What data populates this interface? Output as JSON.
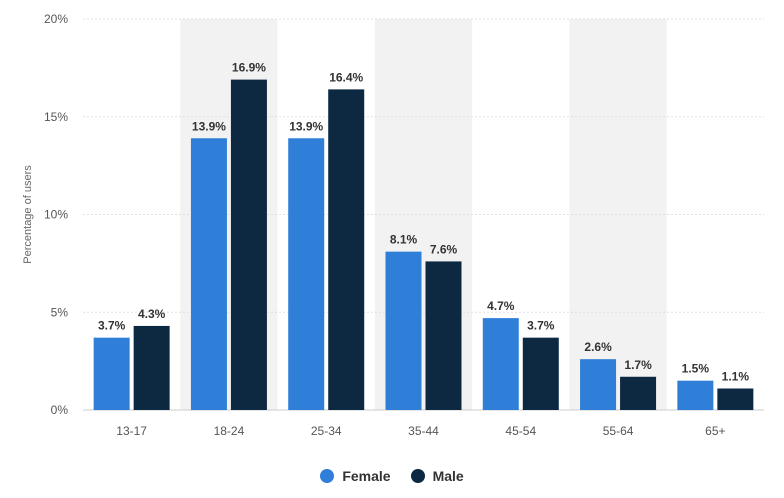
{
  "chart_data": {
    "type": "bar",
    "categories": [
      "13-17",
      "18-24",
      "25-34",
      "35-44",
      "45-54",
      "55-64",
      "65+"
    ],
    "series": [
      {
        "name": "Female",
        "color": "#2f7ed8",
        "values": [
          3.7,
          13.9,
          13.9,
          8.1,
          4.7,
          2.6,
          1.5
        ],
        "labels": [
          "3.7%",
          "13.9%",
          "13.9%",
          "8.1%",
          "4.7%",
          "2.6%",
          "1.5%"
        ]
      },
      {
        "name": "Male",
        "color": "#0d2841",
        "values": [
          4.3,
          16.9,
          16.4,
          7.6,
          3.7,
          1.7,
          1.1
        ],
        "labels": [
          "4.3%",
          "16.9%",
          "16.4%",
          "7.6%",
          "3.7%",
          "1.7%",
          "1.1%"
        ]
      }
    ],
    "ylabel": "Percentage of users",
    "ylim": [
      0,
      20
    ],
    "yticks": [
      0,
      5,
      10,
      15,
      20
    ],
    "ytick_labels": [
      "0%",
      "5%",
      "10%",
      "15%",
      "20%"
    ],
    "grid": true,
    "alternating_bands": true,
    "band_color": "#f2f2f2",
    "legend_position": "bottom"
  }
}
